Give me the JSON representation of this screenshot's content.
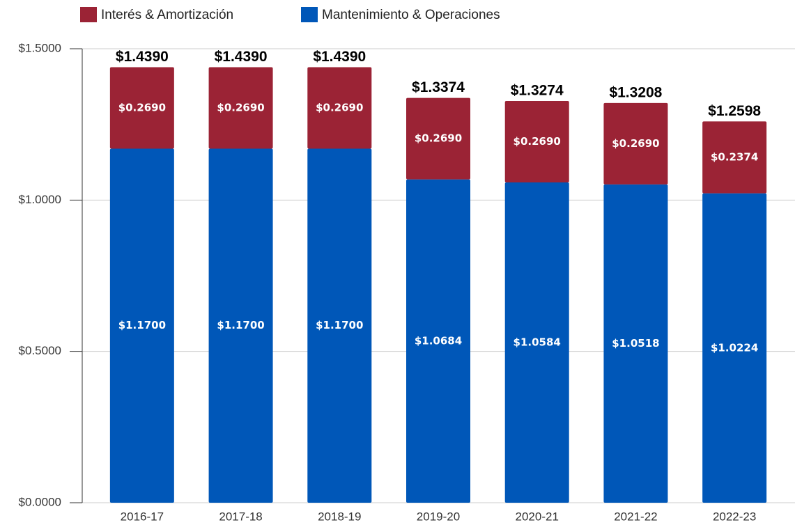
{
  "chart_data": {
    "type": "stacked-bar",
    "categories": [
      "2016-17",
      "2017-18",
      "2018-19",
      "2019-20",
      "2020-21",
      "2021-22",
      "2022-23"
    ],
    "series": [
      {
        "name": "Interés & Amortización",
        "color": "#9b2335",
        "values": [
          0.269,
          0.269,
          0.269,
          0.269,
          0.269,
          0.269,
          0.2374
        ],
        "value_labels": [
          "$0.2690",
          "$0.2690",
          "$0.2690",
          "$0.2690",
          "$0.2690",
          "$0.2690",
          "$0.2374"
        ]
      },
      {
        "name": "Mantenimiento & Operaciones",
        "color": "#0057b8",
        "values": [
          1.17,
          1.17,
          1.17,
          1.0684,
          1.0584,
          1.0518,
          1.0224
        ],
        "value_labels": [
          "$1.1700",
          "$1.1700",
          "$1.1700",
          "$1.0684",
          "$1.0584",
          "$1.0518",
          "$1.0224"
        ]
      }
    ],
    "totals": [
      1.439,
      1.439,
      1.439,
      1.3374,
      1.3274,
      1.3208,
      1.2598
    ],
    "total_labels": [
      "$1.4390",
      "$1.4390",
      "$1.4390",
      "$1.3374",
      "$1.3274",
      "$1.3208",
      "$1.2598"
    ],
    "ylim": [
      0,
      1.5
    ],
    "yticks": [
      {
        "value": 0,
        "label": "$0.0000"
      },
      {
        "value": 0.5,
        "label": "$0.5000"
      },
      {
        "value": 1,
        "label": "$1.0000"
      },
      {
        "value": 1.5,
        "label": "$1.5000"
      }
    ],
    "grid": true,
    "legend": "top"
  }
}
